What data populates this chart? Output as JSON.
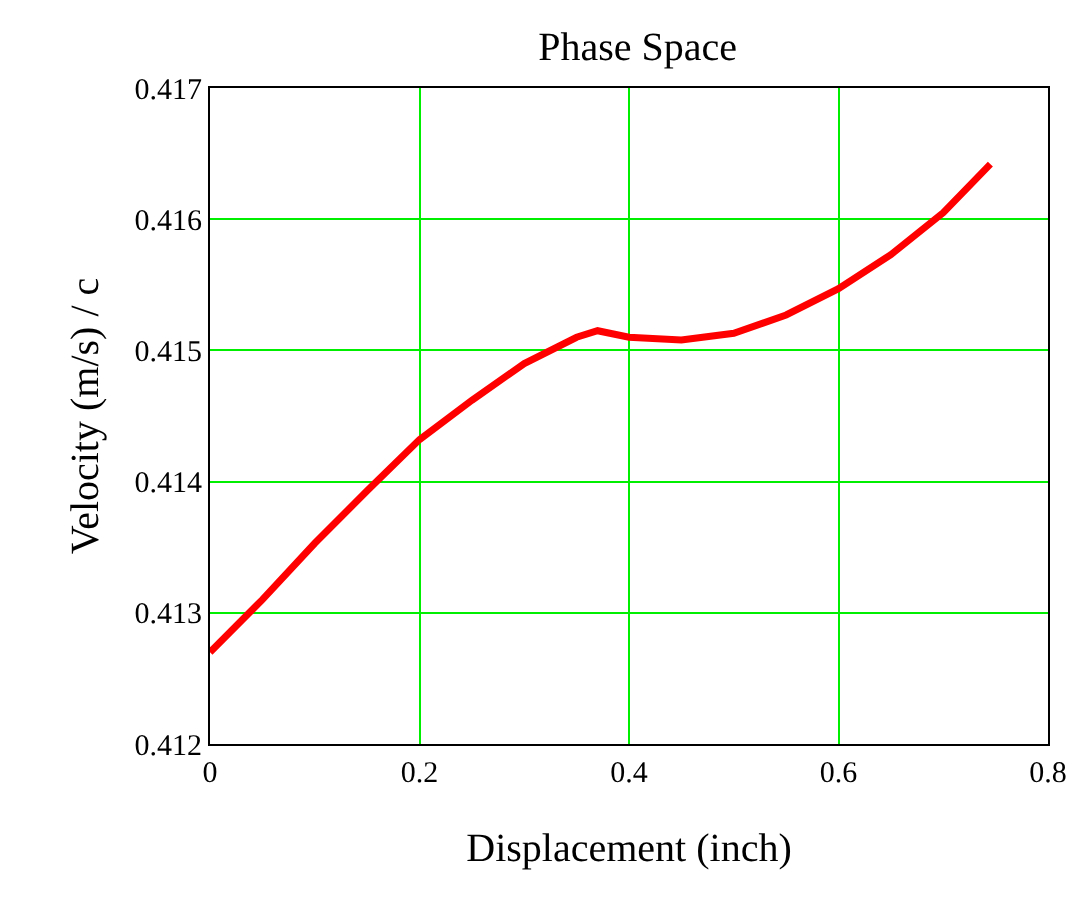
{
  "chart_data": {
    "type": "line",
    "title": "Phase Space",
    "xlabel": "Displacement (inch)",
    "ylabel": "Velocity (m/s) / c",
    "x": [
      0,
      0.05,
      0.1,
      0.15,
      0.2,
      0.25,
      0.3,
      0.35,
      0.37,
      0.4,
      0.45,
      0.5,
      0.55,
      0.6,
      0.65,
      0.7,
      0.745
    ],
    "series": [
      {
        "color": "#ff0000",
        "values": [
          0.4127,
          0.4131,
          0.41353,
          0.41393,
          0.41432,
          0.41462,
          0.4149,
          0.4151,
          0.41515,
          0.4151,
          0.41508,
          0.41513,
          0.41527,
          0.41547,
          0.41573,
          0.41605,
          0.41642
        ]
      }
    ],
    "xlim": [
      0,
      0.8
    ],
    "xticks": [
      0,
      0.2,
      0.4,
      0.6,
      0.8
    ],
    "ylim": [
      0.412,
      0.417
    ],
    "yticks": [
      0.412,
      0.413,
      0.414,
      0.415,
      0.416,
      0.417
    ],
    "grid": true,
    "marker": "none",
    "line_style": "solid"
  }
}
